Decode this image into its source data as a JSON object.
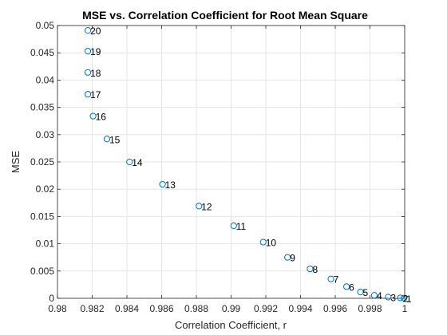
{
  "chart_data": {
    "type": "scatter",
    "title": "MSE vs. Correlation Coefficient for Root Mean Square",
    "xlabel": "Correlation Coefficient, r",
    "ylabel": "MSE",
    "xlim": [
      0.98,
      1.0
    ],
    "ylim": [
      0,
      0.05
    ],
    "xticks": [
      0.98,
      0.982,
      0.984,
      0.986,
      0.988,
      0.99,
      0.992,
      0.994,
      0.996,
      0.998,
      1
    ],
    "xtick_labels": [
      "0.98",
      "0.982",
      "0.984",
      "0.986",
      "0.988",
      "0.99",
      "0.992",
      "0.994",
      "0.996",
      "0.998",
      "1"
    ],
    "yticks": [
      0,
      0.005,
      0.01,
      0.015,
      0.02,
      0.025,
      0.03,
      0.035,
      0.04,
      0.045,
      0.05
    ],
    "ytick_labels": [
      "0",
      "0.005",
      "0.01",
      "0.015",
      "0.02",
      "0.025",
      "0.03",
      "0.035",
      "0.04",
      "0.045",
      "0.05"
    ],
    "grid": true,
    "marker_color": "#0072BD",
    "points": [
      {
        "label": "1",
        "x": 0.99995,
        "y": 2e-05
      },
      {
        "label": "2",
        "x": 0.99975,
        "y": 8e-05
      },
      {
        "label": "3",
        "x": 0.99905,
        "y": 0.00022
      },
      {
        "label": "4",
        "x": 0.99825,
        "y": 0.00055
      },
      {
        "label": "5",
        "x": 0.99745,
        "y": 0.00115
      },
      {
        "label": "6",
        "x": 0.99665,
        "y": 0.00215
      },
      {
        "label": "7",
        "x": 0.99575,
        "y": 0.00355
      },
      {
        "label": "8",
        "x": 0.99455,
        "y": 0.0054
      },
      {
        "label": "9",
        "x": 0.99325,
        "y": 0.0075
      },
      {
        "label": "10",
        "x": 0.99185,
        "y": 0.0103
      },
      {
        "label": "11",
        "x": 0.99015,
        "y": 0.0133
      },
      {
        "label": "12",
        "x": 0.98815,
        "y": 0.0169
      },
      {
        "label": "13",
        "x": 0.98605,
        "y": 0.0209
      },
      {
        "label": "14",
        "x": 0.98415,
        "y": 0.025
      },
      {
        "label": "15",
        "x": 0.98285,
        "y": 0.0292
      },
      {
        "label": "16",
        "x": 0.98205,
        "y": 0.0334
      },
      {
        "label": "17",
        "x": 0.98175,
        "y": 0.0374
      },
      {
        "label": "18",
        "x": 0.98175,
        "y": 0.0414
      },
      {
        "label": "19",
        "x": 0.98175,
        "y": 0.0453
      },
      {
        "label": "20",
        "x": 0.98175,
        "y": 0.0491
      }
    ]
  }
}
